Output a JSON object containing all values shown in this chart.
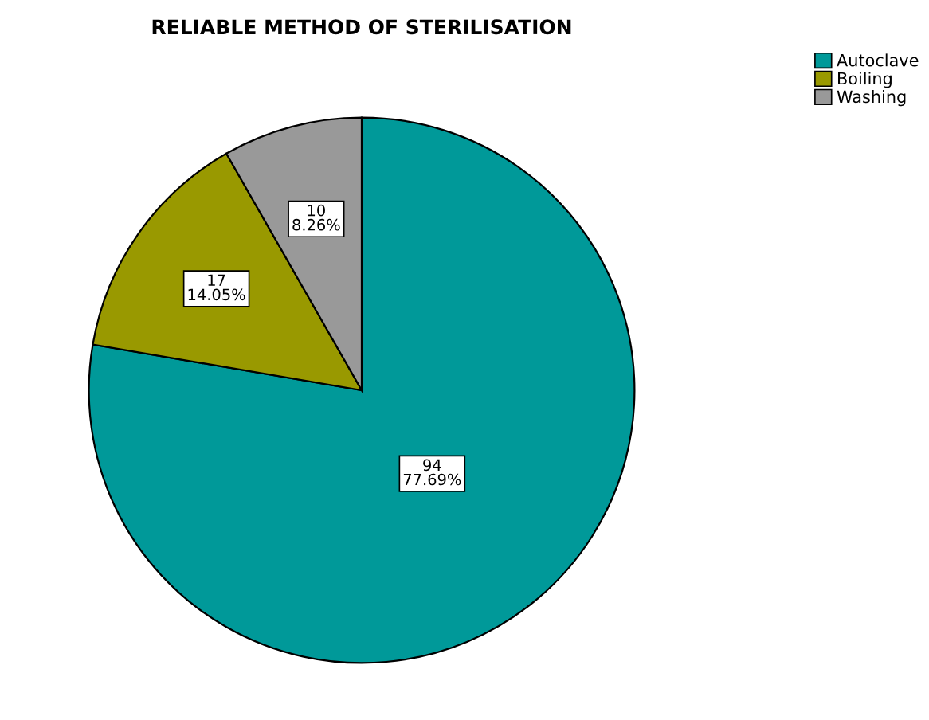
{
  "chart_data": {
    "type": "pie",
    "title": "RELIABLE METHOD OF STERILISATION",
    "categories": [
      "Autoclave",
      "Boiling",
      "Washing"
    ],
    "values": [
      94,
      17,
      10
    ],
    "colors": [
      "#009999",
      "#999900",
      "#999999"
    ],
    "value_labels": [
      "94\n77.69%",
      "17\n14.05%",
      "10\n8.26%"
    ],
    "legend": "top right"
  }
}
